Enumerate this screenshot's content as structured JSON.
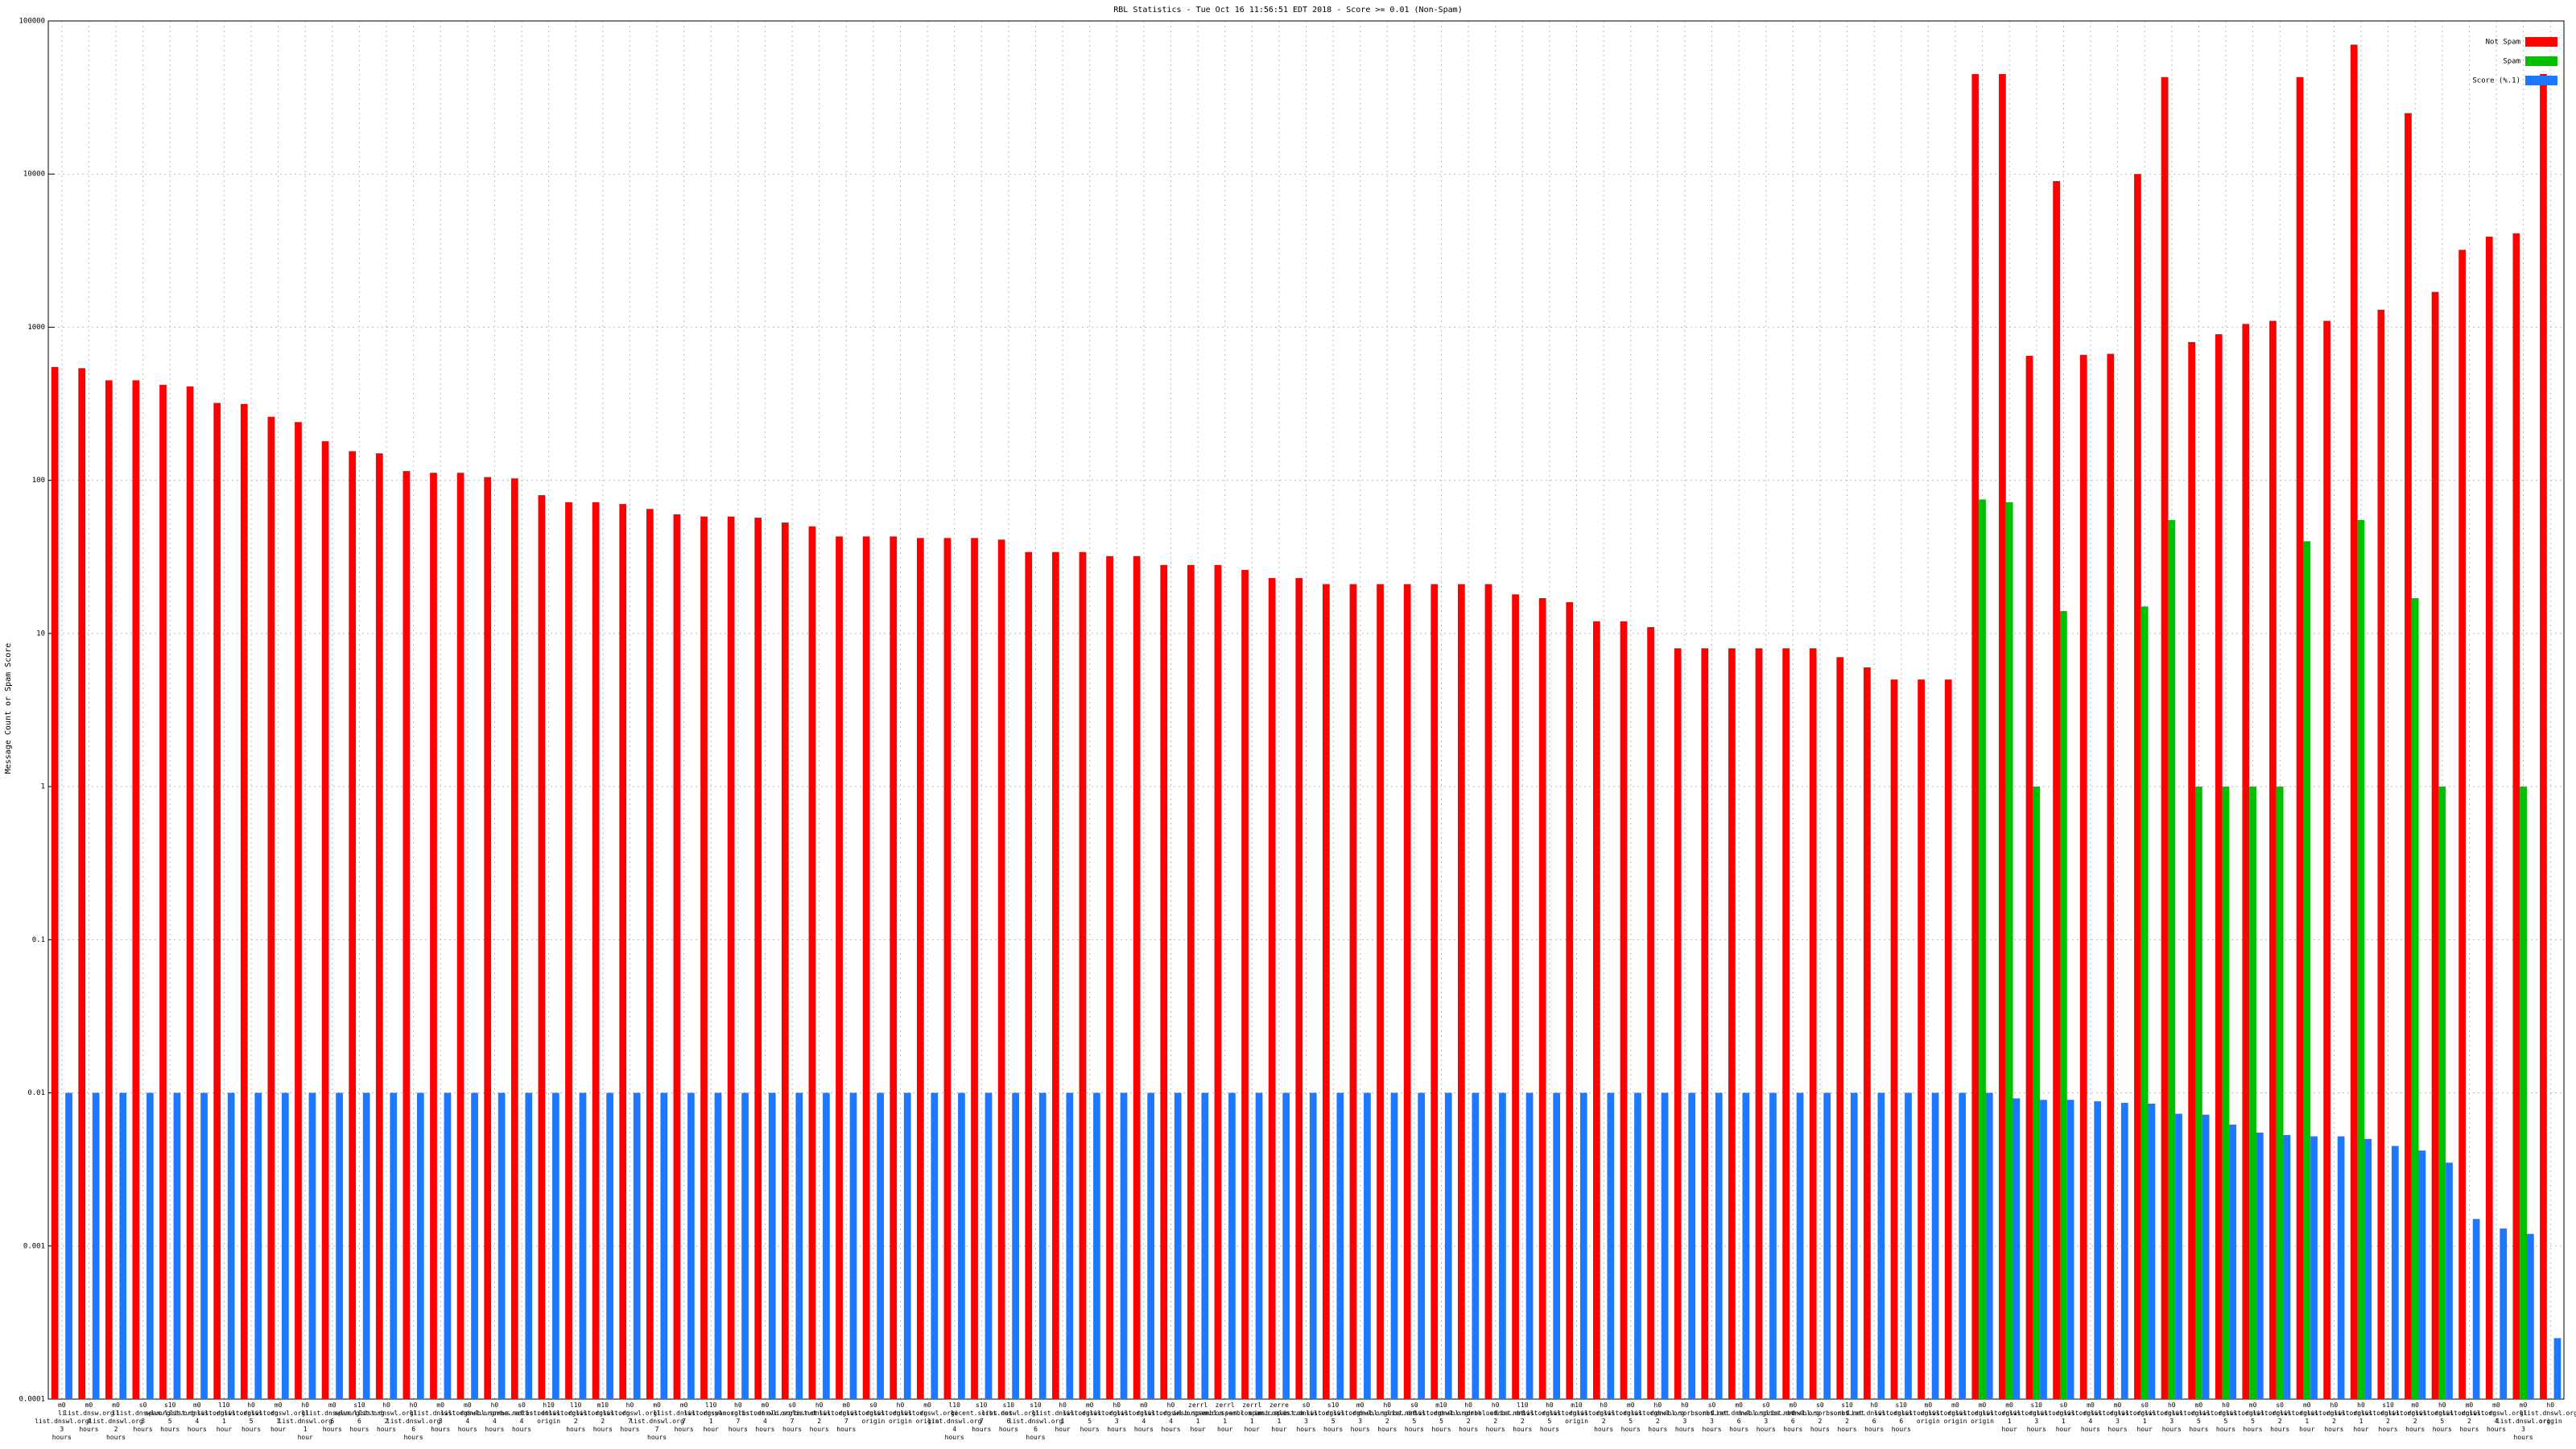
{
  "chart_data": {
    "type": "bar",
    "title": "RBL Statistics - Tue Oct 16 11:56:51 EDT 2018 - Score >= 0.01 (Non-Spam)",
    "y_label": "Message Count or Spam Score",
    "log_y": true,
    "grid": true,
    "legend": "upper right",
    "ylim": [
      0.0001,
      100000
    ],
    "yticks": [
      0.0001,
      0.001,
      0.01,
      0.1,
      1,
      10,
      100,
      1000,
      10000,
      100000
    ],
    "categories": [
      "m0 li list.dnswl.org 3 hours",
      "m0 list.dnsw.org 4 hours",
      "m0 li list.dnswl.org 2 hours",
      "s0 list.dnswl.org 3 hours",
      "s10 spam.list.org 5 hours",
      "m0 list.dnswl.org 4 hours",
      "l10 list.dnswl.org 1 hour",
      "h0 list.dnswl.org 5 hours",
      "m0 list.dnswl.org 1 hour",
      "h0 li list.dnswl.org 1 hour",
      "m0 list.dnswl.org 6 hours",
      "s10 spam.list.org 6 hours",
      "h0 list.dnswl.org 2 hours",
      "h0 li list.dnswl.org 6 hours",
      "m0 list.dnswl.org 3 hours",
      "m0 list.dnswl.org 4 hours",
      "h0 dnsbl.sorbs.net 4 hours",
      "s0 news.sorbs.net 4 hours",
      "h10 list.dnswl.org origin",
      "l10 list.dnswl.org 2 hours",
      "m10 list.dnswl.org 2 hours",
      "h0 list.dnswl.org 7 hours",
      "m0 li list.dnswl.org 7 hours",
      "m0 list.dnswl.org 7 hours",
      "l10 list.dnswl.org 1 hour",
      "h0 spam.sorbs.net 7 hours",
      "m0 list.dnswl.org 4 hours",
      "s0 old.sorbs.net 7 hours",
      "h0 list.dnswl.org 2 hours",
      "m0 list.dnswl.org 7 hours",
      "s0 list.dnswl.org origin",
      "h0 list.dnswl.org origin",
      "m0 list.dnswl.org origin",
      "l10 li list.dnswl.org 4 hours",
      "s10 recent.sorbs.net 7 hours",
      "s10 list.dnswl.org 6 hours",
      "s10 li list.dnswl.org 6 hours",
      "h0 list.dnswl.org 1 hour",
      "m0 list.dnswl.org 5 hours",
      "h0 list.dnswl.org 3 hours",
      "m0 list.dnswl.org 4 hours",
      "h0 list.dnswl.org 4 hours",
      "zerrl imsb.spam.com 1 hour",
      "zerrl sembl.spam.com 1 hour",
      "zerrl sembl.spam.com 1 hour",
      "zerre imsb.spam.com 1 hour",
      "s0 list.dnswl.org 3 hours",
      "s10 list.dnswl.org 5 hours",
      "m0 list.dnswl.org 3 hours",
      "h0 dnsbl.sorbs.net 2 hours",
      "s0 list.dnswl.org 5 hours",
      "m10 list.dnswl.org 5 hours",
      "h0 dnsbl.sorbs.net 2 hours",
      "h0 dnsbl.sorbs.net 2 hours",
      "l10 list.dnswl.org 2 hours",
      "h0 list.dnswl.org 5 hours",
      "m10 list.dnswl.org origin",
      "h0 list.dnswl.org 2 hours",
      "m0 list.dnswl.org 5 hours",
      "h0 list.dnswl.org 2 hours",
      "h0 dnsbl.sorbs.net 3 hours",
      "s0 sorbs.net 3 hours",
      "m0 list.dnswl.org 6 hours",
      "s0 dnsbl.sorbs.net 3 hours",
      "m0 list.dnswl.org 6 hours",
      "s0 dnsbl.sorbs.net 2 hours",
      "s10 sorbs.net 2 hours",
      "h0 list.dnswl.org 6 hours",
      "s10 list.dnswl.org 6 hours",
      "m0 list.dnswl.org origin",
      "m0 list.dnswl.org origin",
      "m0 list.dnswl.org origin",
      "m0 list.dnswl.org 1 hour",
      "s10 list.dnswl.org 3 hours",
      "s0 list.dnswl.org 1 hour",
      "m0 list.dnswl.org 4 hours",
      "m0 list.dnswl.org 3 hours",
      "s0 list.dnswl.org 1 hour",
      "h0 list.dnswl.org 3 hours",
      "m0 list.dnswl.org 5 hours",
      "h0 list.dnswl.org 5 hours",
      "m0 list.dnswl.org 5 hours",
      "s0 list.dnswl.org 2 hours",
      "m0 list.dnswl.org 1 hour",
      "h0 list.dnswl.org 2 hours",
      "h0 list.dnswl.org 1 hour",
      "s10 list.dnswl.org 2 hours",
      "m0 list.dnswl.org 2 hours",
      "h0 list.dnswl.org 5 hours",
      "m0 list.dnswl.org 2 hours",
      "m0 list.dnswl.org 4 hours",
      "m0 li list.dnswl.org 3 hours",
      "h0 list.dnswl.org origin"
    ],
    "series": [
      {
        "name": "Not Spam",
        "color": "#ff0000",
        "values": [
          550,
          540,
          450,
          450,
          420,
          410,
          320,
          315,
          260,
          240,
          180,
          155,
          150,
          115,
          112,
          112,
          105,
          103,
          80,
          72,
          72,
          70,
          65,
          60,
          58,
          58,
          57,
          53,
          50,
          43,
          43,
          43,
          42,
          42,
          42,
          41,
          34,
          34,
          34,
          32,
          32,
          28,
          28,
          28,
          26,
          23,
          23,
          21,
          21,
          21,
          21,
          21,
          21,
          21,
          18,
          17,
          16,
          12,
          12,
          11,
          8,
          8,
          8,
          8,
          8,
          8,
          7,
          6,
          5,
          5,
          5,
          45000,
          45000,
          650,
          9000,
          660,
          670,
          10000,
          43000,
          800,
          900,
          1050,
          1100,
          43000,
          1100,
          70000,
          1300,
          25000,
          1700,
          3200,
          3900,
          4100,
          45000
        ]
      },
      {
        "name": "Spam",
        "color": "#00c000",
        "values": [
          null,
          null,
          null,
          null,
          null,
          null,
          null,
          null,
          null,
          null,
          null,
          null,
          null,
          null,
          null,
          null,
          null,
          null,
          null,
          null,
          null,
          null,
          null,
          null,
          null,
          null,
          null,
          null,
          null,
          null,
          null,
          null,
          null,
          null,
          null,
          null,
          null,
          null,
          null,
          null,
          null,
          null,
          null,
          null,
          null,
          null,
          null,
          null,
          null,
          null,
          null,
          null,
          null,
          null,
          null,
          null,
          null,
          null,
          null,
          null,
          null,
          null,
          null,
          null,
          null,
          null,
          null,
          null,
          null,
          null,
          null,
          75,
          72,
          1,
          14,
          null,
          null,
          15,
          55,
          1,
          1,
          1,
          1,
          40,
          null,
          55,
          null,
          17,
          1,
          null,
          null,
          1,
          null
        ]
      },
      {
        "name": "Score (%.1)",
        "color": "#1e78ff",
        "values": [
          0.01,
          0.01,
          0.01,
          0.01,
          0.01,
          0.01,
          0.01,
          0.01,
          0.01,
          0.01,
          0.01,
          0.01,
          0.01,
          0.01,
          0.01,
          0.01,
          0.01,
          0.01,
          0.01,
          0.01,
          0.01,
          0.01,
          0.01,
          0.01,
          0.01,
          0.01,
          0.01,
          0.01,
          0.01,
          0.01,
          0.01,
          0.01,
          0.01,
          0.01,
          0.01,
          0.01,
          0.01,
          0.01,
          0.01,
          0.01,
          0.01,
          0.01,
          0.01,
          0.01,
          0.01,
          0.01,
          0.01,
          0.01,
          0.01,
          0.01,
          0.01,
          0.01,
          0.01,
          0.01,
          0.01,
          0.01,
          0.01,
          0.01,
          0.01,
          0.01,
          0.01,
          0.01,
          0.01,
          0.01,
          0.01,
          0.01,
          0.01,
          0.01,
          0.01,
          0.01,
          0.01,
          0.01,
          0.0092,
          0.009,
          0.009,
          0.0088,
          0.0086,
          0.0085,
          0.0073,
          0.0072,
          0.0062,
          0.0055,
          0.0053,
          0.0052,
          0.0052,
          0.005,
          0.0045,
          0.0042,
          0.0035,
          0.0015,
          0.0013,
          0.0012,
          0.00025
        ]
      }
    ]
  }
}
